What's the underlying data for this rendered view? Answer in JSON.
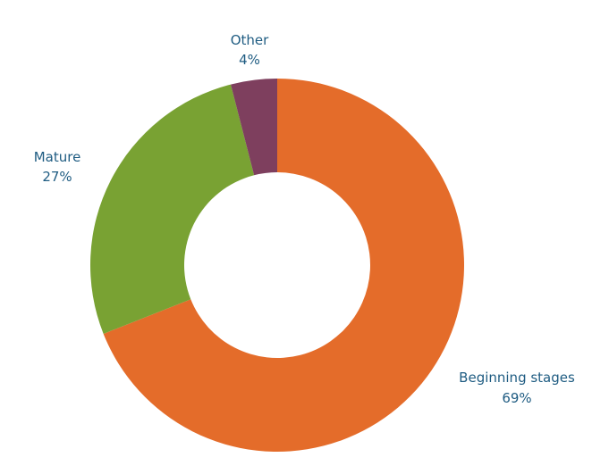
{
  "chart_data": {
    "type": "pie",
    "title": "",
    "slices": [
      {
        "label": "Beginning stages",
        "value": 69,
        "value_label": "69%",
        "color": "#E46C2A"
      },
      {
        "label": "Mature",
        "value": 27,
        "value_label": "27%",
        "color": "#79A233"
      },
      {
        "label": "Other",
        "value": 4,
        "value_label": "4%",
        "color": "#7E3F5E"
      }
    ],
    "label_color": "#1F5C82",
    "donut": true,
    "legend": "none"
  }
}
